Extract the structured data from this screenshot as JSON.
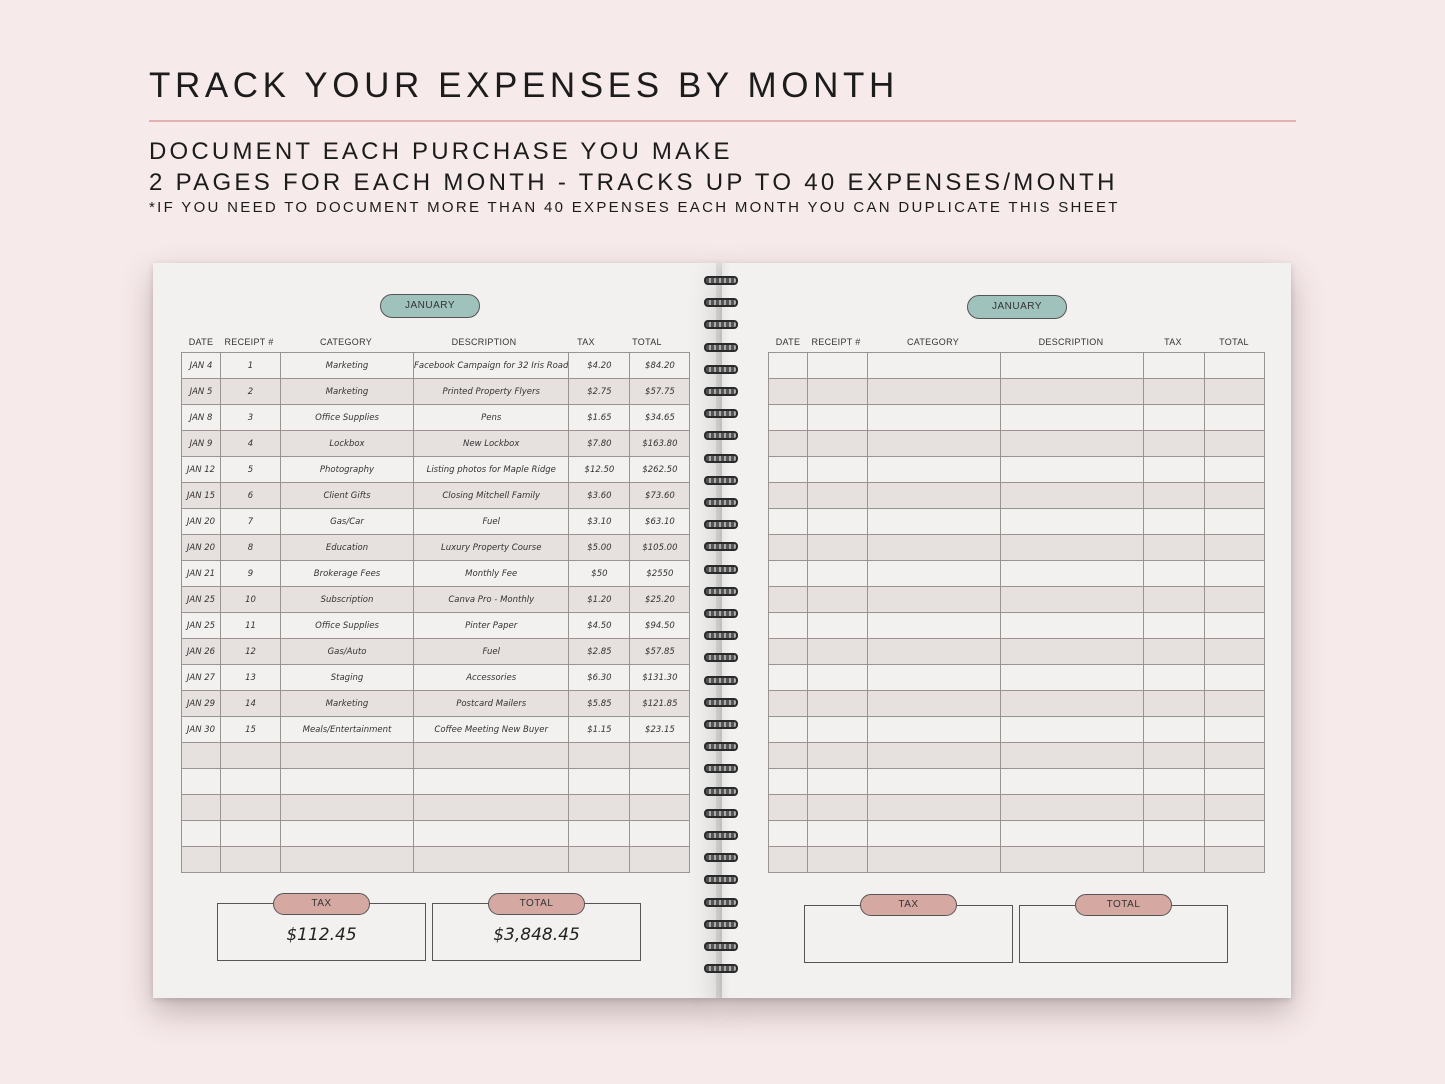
{
  "header": {
    "title": "TRACK YOUR EXPENSES BY MONTH",
    "line1": "DOCUMENT EACH PURCHASE YOU MAKE",
    "line2": "2 PAGES FOR EACH MONTH - TRACKS UP TO 40 EXPENSES/MONTH",
    "note": "*IF YOU NEED TO DOCUMENT MORE THAN 40 EXPENSES EACH MONTH YOU CAN DUPLICATE THIS SHEET"
  },
  "columns": [
    "DATE",
    "RECEIPT #",
    "CATEGORY",
    "DESCRIPTION",
    "TAX",
    "TOTAL"
  ],
  "left_page": {
    "month": "JANUARY",
    "rows": [
      [
        "JAN 4",
        "1",
        "Marketing",
        "Facebook Campaign for 32 Iris Road",
        "$4.20",
        "$84.20"
      ],
      [
        "JAN 5",
        "2",
        "Marketing",
        "Printed Property Flyers",
        "$2.75",
        "$57.75"
      ],
      [
        "JAN 8",
        "3",
        "Office Supplies",
        "Pens",
        "$1.65",
        "$34.65"
      ],
      [
        "JAN 9",
        "4",
        "Lockbox",
        "New Lockbox",
        "$7.80",
        "$163.80"
      ],
      [
        "JAN 12",
        "5",
        "Photography",
        "Listing photos for Maple Ridge",
        "$12.50",
        "$262.50"
      ],
      [
        "JAN 15",
        "6",
        "Client Gifts",
        "Closing Mitchell Family",
        "$3.60",
        "$73.60"
      ],
      [
        "JAN 20",
        "7",
        "Gas/Car",
        "Fuel",
        "$3.10",
        "$63.10"
      ],
      [
        "JAN 20",
        "8",
        "Education",
        "Luxury Property Course",
        "$5.00",
        "$105.00"
      ],
      [
        "JAN 21",
        "9",
        "Brokerage Fees",
        "Monthly Fee",
        "$50",
        "$2550"
      ],
      [
        "JAN 25",
        "10",
        "Subscription",
        "Canva Pro - Monthly",
        "$1.20",
        "$25.20"
      ],
      [
        "JAN 25",
        "11",
        "Office Supplies",
        "Pinter Paper",
        "$4.50",
        "$94.50"
      ],
      [
        "JAN 26",
        "12",
        "Gas/Auto",
        "Fuel",
        "$2.85",
        "$57.85"
      ],
      [
        "JAN 27",
        "13",
        "Staging",
        "Accessories",
        "$6.30",
        "$131.30"
      ],
      [
        "JAN 29",
        "14",
        "Marketing",
        "Postcard Mailers",
        "$5.85",
        "$121.85"
      ],
      [
        "JAN 30",
        "15",
        "Meals/Entertainment",
        "Coffee Meeting New Buyer",
        "$1.15",
        "$23.15"
      ]
    ],
    "tax_label": "TAX",
    "total_label": "TOTAL",
    "tax_value": "$112.45",
    "total_value": "$3,848.45"
  },
  "right_page": {
    "month": "JANUARY",
    "tax_label": "TAX",
    "total_label": "TOTAL"
  },
  "colors": {
    "background": "#f7eaea",
    "month_pill": "#9fc2bd",
    "summary_pill": "#d5a9a2",
    "row_shade": "#e6e1de",
    "accent_rule": "#e4b1b1"
  }
}
